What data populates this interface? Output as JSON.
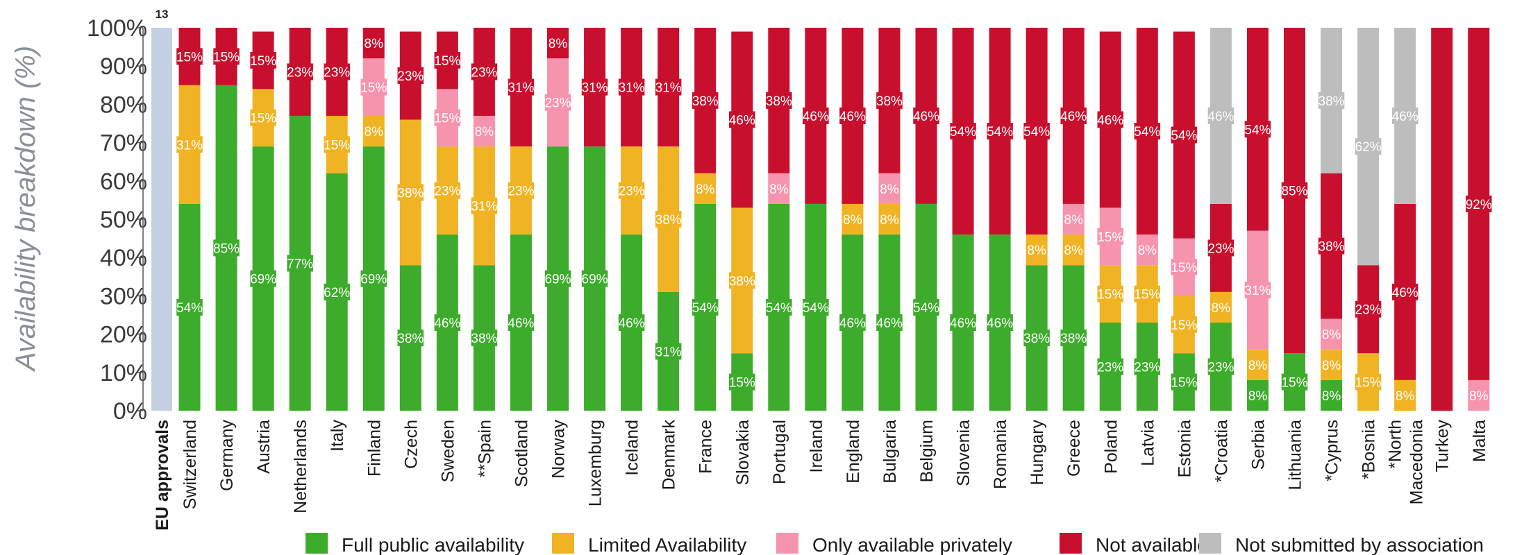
{
  "chart_data": {
    "type": "bar",
    "stacked": true,
    "ylabel": "Availability breakdown (%)",
    "ylim": [
      0,
      100
    ],
    "yticks": [
      "0%",
      "10%",
      "20%",
      "30%",
      "40%",
      "50%",
      "60%",
      "70%",
      "80%",
      "90%",
      "100%"
    ],
    "legend_position": "bottom",
    "eu_bar": {
      "label": "EU approvals",
      "value": 13,
      "color": "#c5d0e2"
    },
    "categories": [
      "Switzerland",
      "Germany",
      "Austria",
      "Netherlands",
      "Italy",
      "Finland",
      "Czech",
      "Sweden",
      "**Spain",
      "Scotland",
      "Norway",
      "Luxemburg",
      "Iceland",
      "Denmark",
      "France",
      "Slovakia",
      "Portugal",
      "Ireland",
      "England",
      "Bulgaria",
      "Belgium",
      "Slovenia",
      "Romania",
      "Hungary",
      "Greece",
      "Poland",
      "Latvia",
      "Estonia",
      "*Croatia",
      "Serbia",
      "Lithuania",
      "*Cyprus",
      "*Bosnia",
      "*North Macedonia",
      "Turkey",
      "Malta"
    ],
    "series": [
      {
        "name": "Full public availability",
        "color": "#3dab2b",
        "values": [
          54,
          85,
          69,
          77,
          62,
          69,
          38,
          46,
          38,
          46,
          69,
          69,
          46,
          31,
          54,
          15,
          54,
          54,
          46,
          46,
          54,
          46,
          46,
          38,
          38,
          23,
          23,
          15,
          23,
          8,
          15,
          8,
          0,
          0,
          0,
          0
        ]
      },
      {
        "name": "Limited Availability",
        "color": "#f0b323",
        "values": [
          31,
          0,
          15,
          0,
          15,
          8,
          38,
          23,
          31,
          23,
          0,
          0,
          23,
          38,
          8,
          38,
          0,
          0,
          8,
          8,
          0,
          0,
          0,
          8,
          8,
          15,
          15,
          15,
          8,
          8,
          0,
          8,
          15,
          8,
          0,
          0
        ]
      },
      {
        "name": "Only available privately",
        "color": "#f693ad",
        "values": [
          0,
          0,
          0,
          0,
          0,
          15,
          0,
          15,
          8,
          0,
          23,
          0,
          0,
          0,
          0,
          0,
          8,
          0,
          0,
          8,
          0,
          0,
          0,
          0,
          8,
          15,
          8,
          15,
          0,
          31,
          0,
          8,
          0,
          0,
          0,
          8
        ]
      },
      {
        "name": "Not available",
        "color": "#c8102e",
        "values": [
          15,
          15,
          15,
          23,
          23,
          8,
          23,
          15,
          23,
          31,
          8,
          31,
          31,
          31,
          38,
          46,
          38,
          46,
          46,
          38,
          46,
          54,
          54,
          54,
          46,
          46,
          54,
          54,
          23,
          54,
          85,
          38,
          23,
          46,
          100,
          92
        ]
      },
      {
        "name": "Not submitted by association",
        "color": "#bdbdbd",
        "values": [
          0,
          0,
          0,
          0,
          0,
          0,
          0,
          0,
          0,
          0,
          0,
          0,
          0,
          0,
          0,
          0,
          0,
          0,
          0,
          0,
          0,
          0,
          0,
          0,
          0,
          0,
          0,
          0,
          46,
          0,
          0,
          38,
          62,
          46,
          0,
          0
        ]
      }
    ],
    "labels": [
      [
        "54%",
        "31%",
        "",
        "15%",
        ""
      ],
      [
        "85%",
        "",
        "",
        "15%",
        ""
      ],
      [
        "69%",
        "15%",
        "",
        "15%",
        ""
      ],
      [
        "77%",
        "",
        "",
        "23%",
        ""
      ],
      [
        "62%",
        "15%",
        "",
        "23%",
        ""
      ],
      [
        "69%",
        "8%",
        "15%",
        "8%",
        ""
      ],
      [
        "38%",
        "38%",
        "",
        "23%",
        ""
      ],
      [
        "46%",
        "23%",
        "15%",
        "15%",
        ""
      ],
      [
        "38%",
        "31%",
        "8%",
        "23%",
        ""
      ],
      [
        "46%",
        "23%",
        "",
        "31%",
        ""
      ],
      [
        "69%",
        "",
        "23%",
        "8%",
        ""
      ],
      [
        "69%",
        "",
        "",
        "31%",
        ""
      ],
      [
        "46%",
        "23%",
        "",
        "31%",
        ""
      ],
      [
        "31%",
        "38%",
        "",
        "31%",
        ""
      ],
      [
        "54%",
        "8%",
        "",
        "38%",
        ""
      ],
      [
        "15%",
        "38%",
        "",
        "46%",
        ""
      ],
      [
        "54%",
        "",
        "8%",
        "38%",
        ""
      ],
      [
        "54%",
        "",
        "",
        "46%",
        ""
      ],
      [
        "46%",
        "8%",
        "",
        "46%",
        ""
      ],
      [
        "46%",
        "8%",
        "8%",
        "38%",
        ""
      ],
      [
        "54%",
        "",
        "",
        "46%",
        ""
      ],
      [
        "46%",
        "",
        "",
        "54%",
        ""
      ],
      [
        "46%",
        "",
        "",
        "54%",
        ""
      ],
      [
        "38%",
        "8%",
        "",
        "54%",
        ""
      ],
      [
        "38%",
        "8%",
        "8%",
        "46%",
        ""
      ],
      [
        "23%",
        "15%",
        "15%",
        "46%",
        ""
      ],
      [
        "23%",
        "15%",
        "8%",
        "54%",
        ""
      ],
      [
        "15%",
        "15%",
        "15%",
        "54%",
        ""
      ],
      [
        "23%",
        "8%",
        "",
        "23%",
        "46%"
      ],
      [
        "8%",
        "8%",
        "31%",
        "54%",
        ""
      ],
      [
        "15%",
        "",
        "",
        "85%",
        ""
      ],
      [
        "8%",
        "8%",
        "8%",
        "38%",
        "38%"
      ],
      [
        "",
        "15%",
        "",
        "23%",
        "62%"
      ],
      [
        "",
        "8%",
        "",
        "46%",
        "46%"
      ],
      [
        "",
        "",
        "",
        "",
        ""
      ],
      [
        "",
        "",
        "8%",
        "92%",
        ""
      ]
    ]
  }
}
